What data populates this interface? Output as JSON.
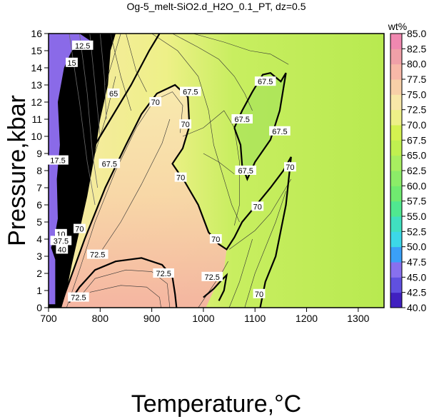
{
  "chart_data": {
    "type": "heatmap",
    "title": "Og-5_melt-SiO2.d_H2O_0.1_PT, dz=0.5",
    "xlabel": "Temperature,°C",
    "ylabel": "Pressure,kbar",
    "xlim": [
      700,
      1350
    ],
    "ylim": [
      0,
      16
    ],
    "x_ticks": [
      700,
      800,
      900,
      1000,
      1100,
      1200,
      1300
    ],
    "y_ticks": [
      0,
      1,
      2,
      3,
      4,
      5,
      6,
      7,
      8,
      9,
      10,
      11,
      12,
      13,
      14,
      15,
      16
    ],
    "grid": false,
    "colorbar": {
      "label": "wt%",
      "range": [
        40,
        85
      ],
      "ticks": [
        40.0,
        42.5,
        45.0,
        47.5,
        50.0,
        52.5,
        55.0,
        57.5,
        60.0,
        62.5,
        65.0,
        67.5,
        70.0,
        72.5,
        75.0,
        77.5,
        80.0,
        82.5,
        85.0
      ],
      "tick_labels": [
        "40.0",
        "42.5",
        "45.0",
        "47.5",
        "50.0",
        "52.5",
        "55.0",
        "57.5",
        "60.0",
        "62.5",
        "65.0",
        "67.5",
        "70.0",
        "72.5",
        "75.0",
        "77.5",
        "80.0",
        "82.5",
        "85.0"
      ],
      "colors": [
        "#4020c0",
        "#6050e0",
        "#8870ee",
        "#3aa0f8",
        "#3cd8e8",
        "#40e0c0",
        "#50e890",
        "#70ea70",
        "#8cec68",
        "#a8ee60",
        "#c0f050",
        "#d4f250",
        "#eef088",
        "#f8e8a8",
        "#f8d0a8",
        "#f8b8a8",
        "#f0a0a8",
        "#f088b0",
        "#f0c0e0"
      ]
    },
    "contour_labels": [
      {
        "value": "67.5",
        "T": 975,
        "P": 12.6
      },
      {
        "value": "70",
        "T": 907,
        "P": 12.0
      },
      {
        "value": "70",
        "T": 965,
        "P": 10.7
      },
      {
        "value": "70",
        "T": 956,
        "P": 7.6
      },
      {
        "value": "70",
        "T": 1024,
        "P": 4.0
      },
      {
        "value": "70",
        "T": 1105,
        "P": 5.9
      },
      {
        "value": "70",
        "T": 1168,
        "P": 8.2
      },
      {
        "value": "70",
        "T": 1108,
        "P": 0.8
      },
      {
        "value": "70",
        "T": 760,
        "P": 4.6
      },
      {
        "value": "67.5",
        "T": 1120,
        "P": 13.2
      },
      {
        "value": "67.5",
        "T": 1075,
        "P": 11.0
      },
      {
        "value": "67.5",
        "T": 1148,
        "P": 10.3
      },
      {
        "value": "67.5",
        "T": 1082,
        "P": 8.0
      },
      {
        "value": "67.5",
        "T": 818,
        "P": 8.4
      },
      {
        "value": "65",
        "T": 826,
        "P": 12.5
      },
      {
        "value": "72.5",
        "T": 795,
        "P": 3.1
      },
      {
        "value": "72.5",
        "T": 923,
        "P": 2.0
      },
      {
        "value": "72.5",
        "T": 1017,
        "P": 1.8
      },
      {
        "value": "72.5",
        "T": 758,
        "P": 0.6
      },
      {
        "value": "12.5",
        "T": 766,
        "P": 15.3
      },
      {
        "value": "15",
        "T": 745,
        "P": 14.3
      },
      {
        "value": "17.5",
        "T": 718,
        "P": 8.6
      },
      {
        "value": "10",
        "T": 724,
        "P": 4.3
      },
      {
        "value": "37.5",
        "T": 724,
        "P": 3.9
      },
      {
        "value": "40",
        "T": 726,
        "P": 3.4
      }
    ],
    "thick_contours": [
      {
        "level": 70,
        "points": [
          [
            722,
            0
          ],
          [
            740,
            1.5
          ],
          [
            770,
            4
          ],
          [
            810,
            7
          ],
          [
            850,
            9.5
          ],
          [
            880,
            11.3
          ],
          [
            910,
            12.5
          ],
          [
            945,
            13.0
          ],
          [
            970,
            12.3
          ],
          [
            973,
            10.6
          ],
          [
            960,
            9.3
          ],
          [
            940,
            8.4
          ],
          [
            965,
            7.3
          ],
          [
            990,
            6.0
          ],
          [
            1010,
            4.4
          ],
          [
            1030,
            3.7
          ],
          [
            1045,
            3.4
          ],
          [
            1060,
            4.1
          ],
          [
            1075,
            5.0
          ],
          [
            1100,
            5.9
          ],
          [
            1130,
            7.0
          ],
          [
            1155,
            8.0
          ],
          [
            1170,
            8.8
          ]
        ]
      },
      {
        "level": 70,
        "points": [
          [
            1170,
            8.8
          ],
          [
            1160,
            6.0
          ],
          [
            1140,
            3.0
          ],
          [
            1120,
            1.5
          ],
          [
            1110,
            0
          ]
        ]
      },
      {
        "level": 67.5,
        "points": [
          [
            790,
            9.5
          ],
          [
            820,
            11.0
          ],
          [
            860,
            13.0
          ],
          [
            895,
            15.0
          ],
          [
            915,
            16.0
          ]
        ]
      },
      {
        "level": 67.5,
        "points": [
          [
            1060,
            10.5
          ],
          [
            1075,
            11.5
          ],
          [
            1095,
            12.6
          ],
          [
            1115,
            13.6
          ],
          [
            1130,
            13.7
          ],
          [
            1150,
            13.2
          ],
          [
            1160,
            13.7
          ],
          [
            1148,
            11.5
          ],
          [
            1130,
            9.8
          ],
          [
            1100,
            8.5
          ],
          [
            1085,
            7.5
          ],
          [
            1075,
            8.3
          ],
          [
            1072,
            9.5
          ],
          [
            1060,
            10.5
          ]
        ]
      },
      {
        "level": 72.5,
        "points": [
          [
            740,
            0.3
          ],
          [
            760,
            1.2
          ],
          [
            790,
            2.2
          ],
          [
            830,
            2.7
          ],
          [
            880,
            2.9
          ],
          [
            920,
            2.5
          ],
          [
            940,
            1.8
          ],
          [
            945,
            0.8
          ],
          [
            948,
            0
          ]
        ]
      },
      {
        "level": 72.5,
        "points": [
          [
            1000,
            0.6
          ],
          [
            1020,
            1.1
          ],
          [
            1035,
            1.6
          ],
          [
            1045,
            1.9
          ],
          [
            1040,
            1.0
          ],
          [
            1030,
            0.4
          ]
        ]
      }
    ]
  }
}
